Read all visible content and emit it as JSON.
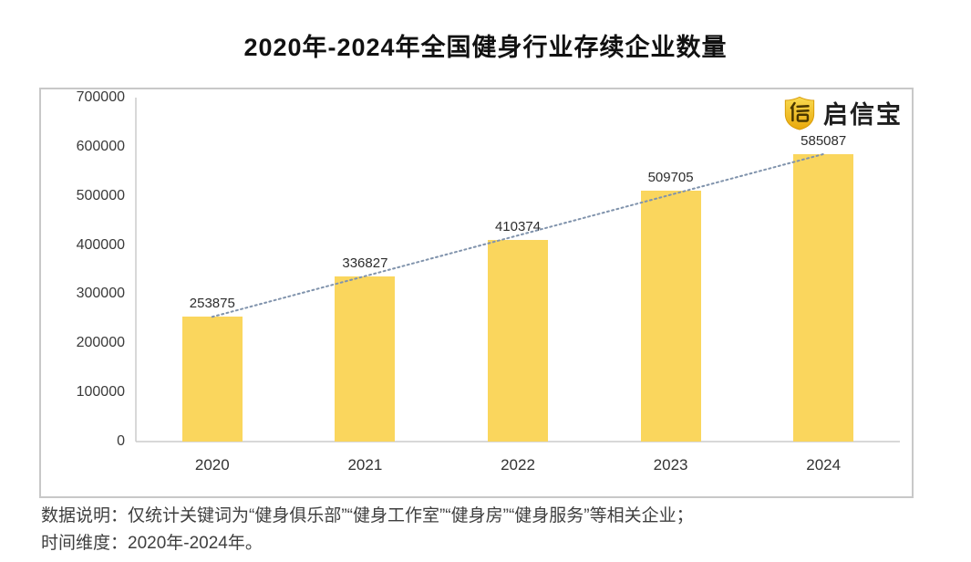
{
  "title": "2020年-2024年全国健身行业存续企业数量",
  "logo": {
    "text": "启信宝",
    "brand_color": "#F0B90B"
  },
  "chart_data": {
    "type": "bar",
    "title": "2020年-2024年全国健身行业存续企业数量",
    "categories": [
      "2020",
      "2021",
      "2022",
      "2023",
      "2024"
    ],
    "values": [
      253875,
      336827,
      410374,
      509705,
      585087
    ],
    "xlabel": "",
    "ylabel": "",
    "ylim": [
      0,
      700000
    ],
    "yticks": [
      0,
      100000,
      200000,
      300000,
      400000,
      500000,
      600000,
      700000
    ],
    "grid": false,
    "legend": "none",
    "data_labels": true,
    "bar_color": "#FAD65D",
    "axis_color": "#cbcbcb",
    "trendline": {
      "style": "dotted",
      "color": "#8093AC",
      "from": "2020",
      "to": "2024"
    }
  },
  "footnote": {
    "line1": "数据说明：仅统计关键词为“健身俱乐部”“健身工作室”“健身房”“健身服务”等相关企业；",
    "line2": "时间维度：2020年-2024年。"
  }
}
